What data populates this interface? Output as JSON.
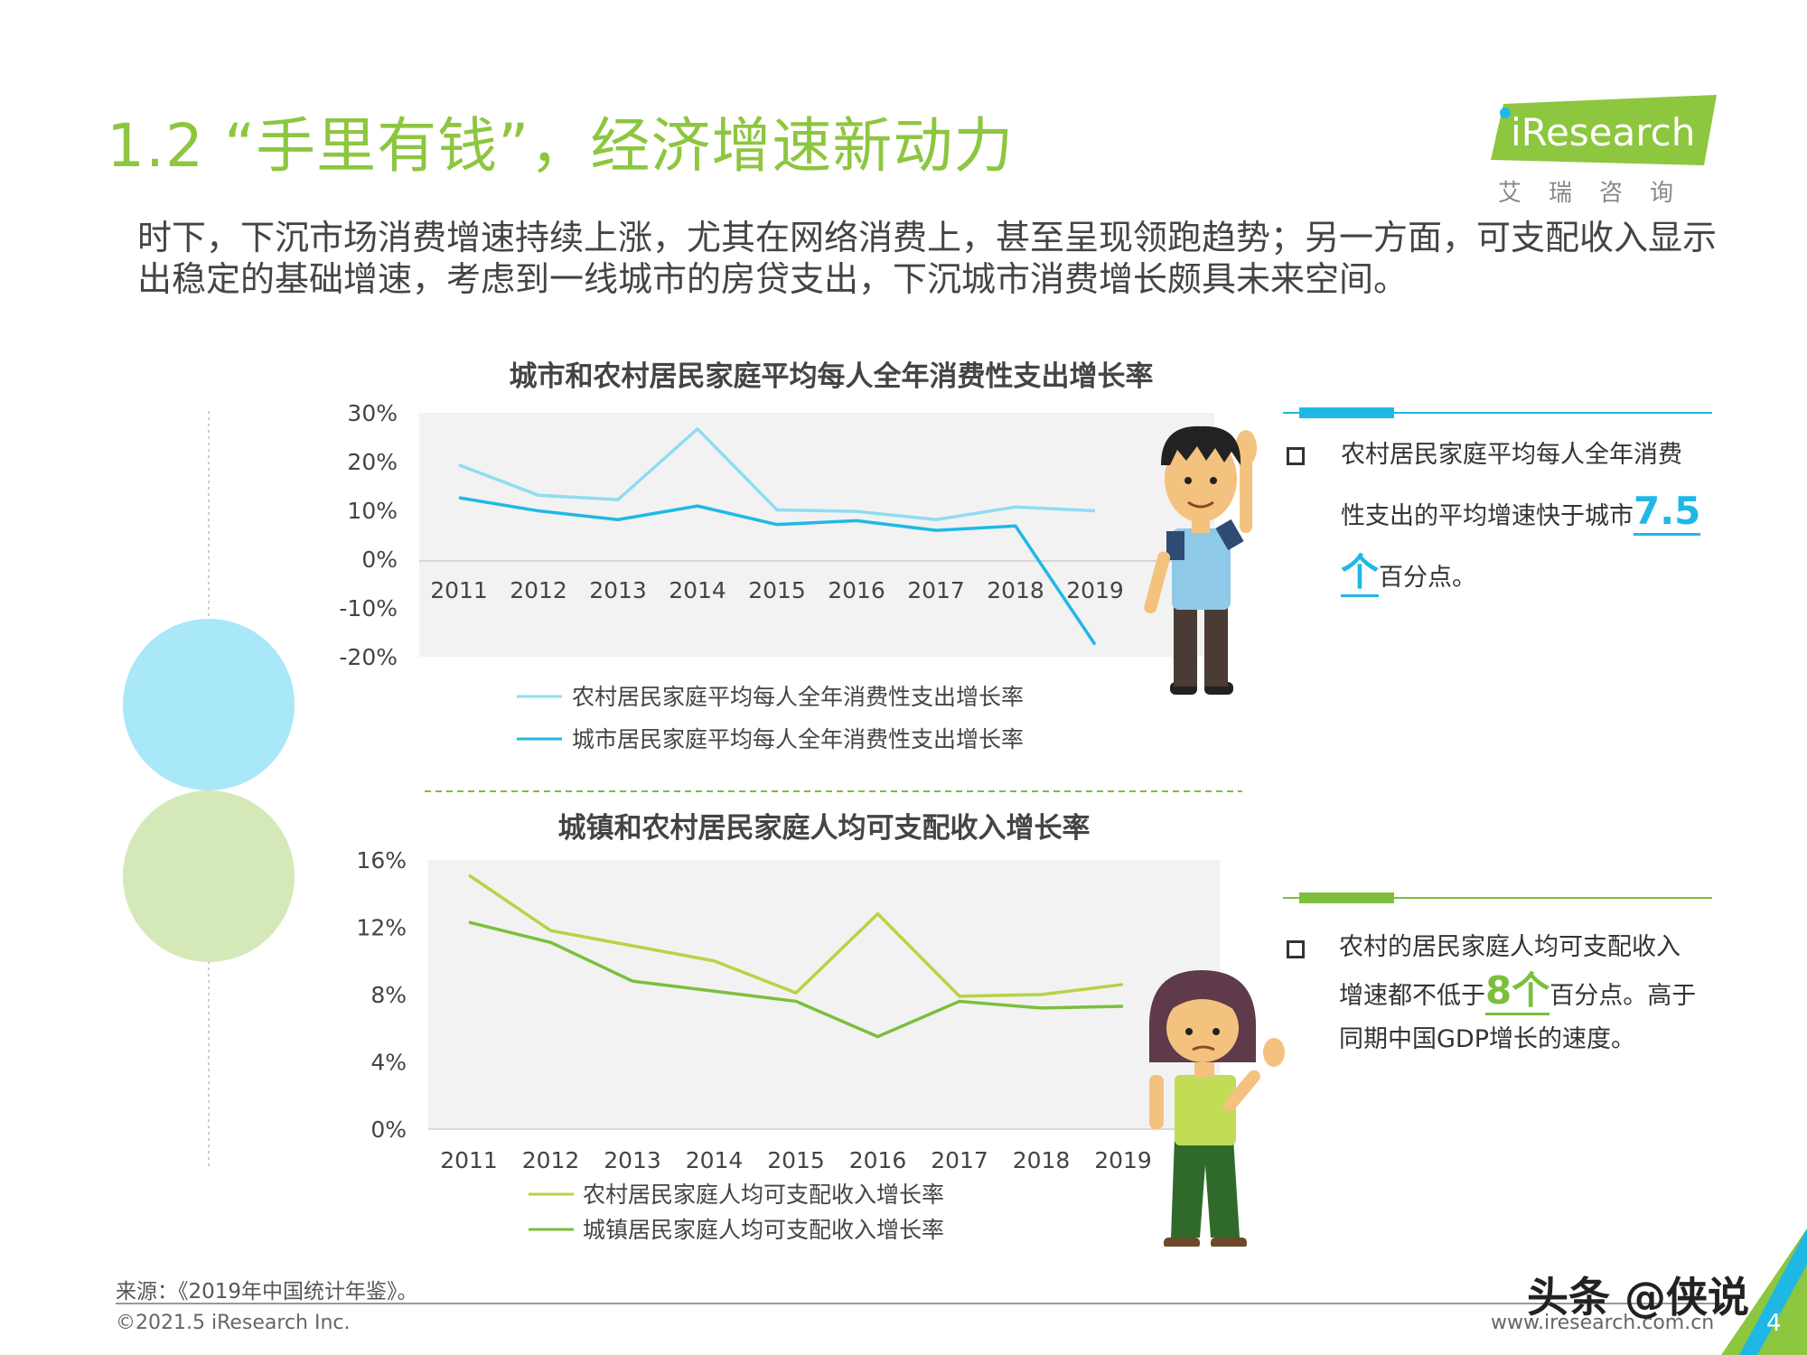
{
  "header": {
    "title": "1.2 “手里有钱”，经济增速新动力",
    "logo_text": "iResearch",
    "logo_sub": "艾瑞咨询"
  },
  "intro": "时下，下沉市场消费增速持续上涨，尤其在网络消费上，甚至呈现领跑趋势；另一方面，可支配收入显示出稳定的基础增速，考虑到一线城市的房贷支出，下沉城市消费增长颇具未来空间。",
  "notes": {
    "note1": {
      "pre": "农村居民家庭平均每人全年消费性支出的平均增速快于城市",
      "num": "7.5",
      "arrow": "个",
      "post": "百分点。"
    },
    "note2": {
      "pre": "农村的居民家庭人均可支配收入增速都不低于",
      "num": "8",
      "arrow": "个",
      "post": "百分点。高于同期中国GDP增长的速度。"
    }
  },
  "footer": {
    "source": "来源：《2019年中国统计年鉴》。",
    "copyright": "©2021.5 iResearch Inc.",
    "website": "www.iresearch.com.cn",
    "watermark": "头条 @侠说",
    "page_number": "4"
  },
  "colors": {
    "title_green": "#8dc63f",
    "series_light_blue": "#8fdcf2",
    "series_blue": "#1fb8e6",
    "series_light_green": "#b5d443",
    "series_green": "#7bbf3c",
    "plot_bg": "#f2f2f2"
  },
  "chart_data": [
    {
      "type": "line",
      "title": "城市和农村居民家庭平均每人全年消费性支出增长率",
      "x": [
        "2011",
        "2012",
        "2013",
        "2014",
        "2015",
        "2016",
        "2017",
        "2018",
        "2019"
      ],
      "yticks": [
        "30%",
        "20%",
        "10%",
        "0%",
        "-10%",
        "-20%"
      ],
      "ylim": [
        -20,
        30
      ],
      "series": [
        {
          "name": "农村居民家庭平均每人全年消费性支出增长率",
          "values": [
            19.3,
            13.1,
            12.2,
            26.7,
            10.1,
            9.8,
            8.1,
            10.7,
            9.9
          ]
        },
        {
          "name": "城市居民家庭平均每人全年消费性支出增长率",
          "values": [
            12.6,
            9.9,
            8.1,
            10.9,
            7.1,
            7.9,
            5.9,
            6.8,
            -17.5
          ]
        }
      ],
      "legend_position": "bottom"
    },
    {
      "type": "line",
      "title": "城镇和农村居民家庭人均可支配收入增长率",
      "x": [
        "2011",
        "2012",
        "2013",
        "2014",
        "2015",
        "2016",
        "2017",
        "2018",
        "2019"
      ],
      "yticks": [
        "16%",
        "12%",
        "8%",
        "4%",
        "0%"
      ],
      "ylim": [
        0,
        16
      ],
      "series": [
        {
          "name": "农村居民家庭人均可支配收入增长率",
          "values": [
            15.1,
            11.8,
            10.9,
            10.0,
            8.1,
            12.8,
            7.9,
            8.0,
            8.6
          ]
        },
        {
          "name": "城镇居民家庭人均可支配收入增长率",
          "values": [
            12.3,
            11.1,
            8.8,
            8.2,
            7.6,
            5.5,
            7.6,
            7.2,
            7.3
          ]
        }
      ],
      "legend_position": "bottom"
    }
  ]
}
